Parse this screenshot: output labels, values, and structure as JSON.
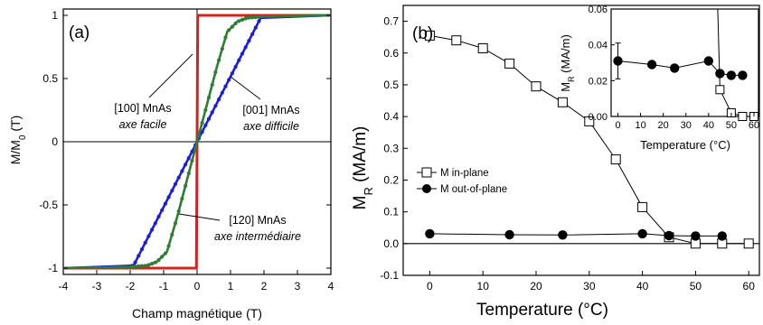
{
  "chart_data": [
    {
      "type": "line",
      "panel_label": "(a)",
      "xlabel": "Champ magnétique (T)",
      "ylabel": "M/M",
      "ylabel_sub": "0",
      "ylabel_unit": " (T)",
      "xlim": [
        -4,
        4
      ],
      "ylim": [
        -1.05,
        1.05
      ],
      "x_ticks": [
        "-4",
        "-3",
        "-2",
        "-1",
        "0",
        "1",
        "2",
        "3",
        "4"
      ],
      "y_ticks": [
        "-1",
        "-0.5",
        "0",
        "0.5",
        "1"
      ],
      "annotations": [
        {
          "line1": "[100] MnAs",
          "line2": "axe facile",
          "target": "red"
        },
        {
          "line1": "[001] MnAs",
          "line2": "axe difficile",
          "target": "blue"
        },
        {
          "line1": "[120] MnAs",
          "line2": "axe intermédiaire",
          "target": "green"
        }
      ],
      "series": [
        {
          "color": "#d32222",
          "x": [
            -4,
            -0.02,
            0.02,
            4
          ],
          "y": [
            -1,
            -1,
            1,
            1
          ]
        },
        {
          "color": "#1c1cdc",
          "x": [
            -4,
            -1.9,
            1.9,
            4
          ],
          "y": [
            -1,
            -0.98,
            0.98,
            1
          ]
        },
        {
          "color": "#2e7d32",
          "x": [
            -4,
            -2,
            -1.5,
            -1.2,
            -0.9,
            -0.6,
            -0.3,
            0,
            0.3,
            0.6,
            0.9,
            1.2,
            1.5,
            2,
            4
          ],
          "y": [
            -1,
            -0.99,
            -0.98,
            -0.95,
            -0.87,
            -0.6,
            -0.3,
            0,
            0.3,
            0.6,
            0.87,
            0.95,
            0.98,
            0.99,
            1
          ]
        }
      ]
    },
    {
      "type": "line",
      "panel_label": "(b)",
      "xlabel": "Temperature (°C)",
      "ylabel": "M",
      "ylabel_sub": "R",
      "ylabel_unit": " (MA/m)",
      "xlim": [
        -5,
        62
      ],
      "ylim": [
        -0.1,
        0.75
      ],
      "x_ticks": [
        "0",
        "10",
        "20",
        "30",
        "40",
        "50",
        "60"
      ],
      "y_ticks": [
        "-0.1",
        "0.0",
        "0.1",
        "0.2",
        "0.3",
        "0.4",
        "0.5",
        "0.6",
        "0.7"
      ],
      "legend": {
        "placement": "middle-left",
        "entries": [
          "M in-plane",
          "M out-of-plane"
        ]
      },
      "series": [
        {
          "name": "M in-plane",
          "marker": "open-square",
          "x": [
            0,
            5,
            10,
            15,
            20,
            25,
            30,
            35,
            40,
            45,
            50,
            55,
            60
          ],
          "y": [
            0.655,
            0.64,
            0.615,
            0.567,
            0.495,
            0.445,
            0.385,
            0.265,
            0.115,
            0.02,
            0.0,
            0.0,
            0.0
          ]
        },
        {
          "name": "M out-of-plane",
          "marker": "filled-circle",
          "x": [
            0,
            15,
            25,
            40,
            45,
            50,
            55
          ],
          "y": [
            0.031,
            0.028,
            0.027,
            0.031,
            0.025,
            0.024,
            0.024
          ]
        }
      ],
      "inset": {
        "xlabel": "Temperature (°C)",
        "ylabel": "M",
        "ylabel_sub": "R",
        "ylabel_unit": " (MA/m)",
        "xlim": [
          -3,
          62
        ],
        "ylim": [
          0,
          0.06
        ],
        "x_ticks": [
          "0",
          "10",
          "20",
          "30",
          "40",
          "50",
          "60"
        ],
        "y_ticks": [
          "0.00",
          "0.02",
          "0.04",
          "0.06"
        ],
        "series": [
          {
            "marker": "open-square",
            "x": [
              45,
              50,
              55,
              60
            ],
            "y": [
              0.015,
              0.002,
              0.0,
              0.0
            ],
            "extends_above_at_x": 44
          },
          {
            "marker": "filled-circle",
            "x": [
              0,
              15,
              25,
              40,
              45,
              50,
              55
            ],
            "y": [
              0.031,
              0.029,
              0.027,
              0.031,
              0.024,
              0.023,
              0.023
            ],
            "error_bar_at_index": 0,
            "error": 0.01
          }
        ]
      }
    }
  ]
}
